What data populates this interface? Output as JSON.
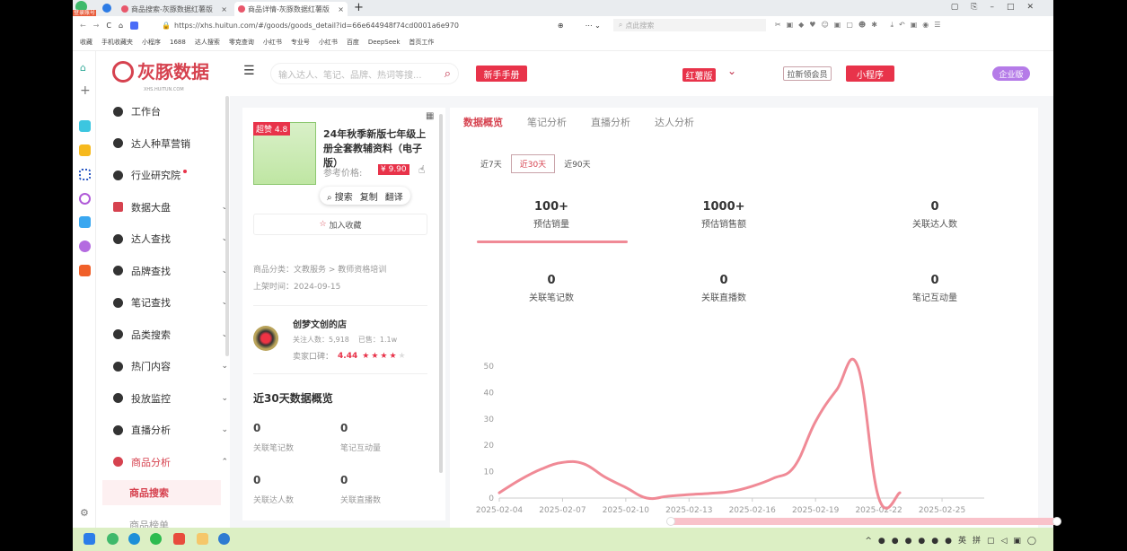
{
  "browser": {
    "tabs": [
      {
        "label": "商品搜索-灰豚数据红薯版"
      },
      {
        "label": "商品详情-灰豚数据红薯版"
      }
    ],
    "profile_badge": "登录账号",
    "url": "https://xhs.huitun.com/#/goods/goods_detail?id=66e644948f74cd0001a6e970",
    "search_placeholder": "点此搜索",
    "bookmarks": [
      "收藏",
      "手机收藏夹",
      "小程序",
      "1688",
      "达人搜索",
      "零克查询",
      "小红书",
      "专业号",
      "小红书",
      "百度",
      "DeepSeek",
      "首页工作"
    ]
  },
  "sidebar": {
    "logo_text": "灰豚数据",
    "logo_sub": "XHS.HUITUN.COM",
    "items": [
      {
        "label": "工作台",
        "icon": "home-icon"
      },
      {
        "label": "达人种草营销",
        "icon": "target-icon"
      },
      {
        "label": "行业研究院",
        "icon": "school-icon",
        "badge": true
      },
      {
        "label": "数据大盘",
        "icon": "bar-chart-icon"
      },
      {
        "label": "达人查找",
        "icon": "search-icon"
      },
      {
        "label": "品牌查找",
        "icon": "brand-icon"
      },
      {
        "label": "笔记查找",
        "icon": "pen-icon"
      },
      {
        "label": "品类搜索",
        "icon": "category-icon"
      },
      {
        "label": "热门内容",
        "icon": "fire-icon"
      },
      {
        "label": "投放监控",
        "icon": "monitor-icon"
      },
      {
        "label": "直播分析",
        "icon": "live-icon"
      },
      {
        "label": "商品分析",
        "icon": "goods-icon"
      }
    ],
    "sub_active": "商品搜索",
    "sub_next": "商品榜单"
  },
  "header": {
    "search_placeholder": "输入达人、笔记、品牌、热词等搜...",
    "guide_btn": "新手手册",
    "version": "红薯版",
    "invite_btn": "拉新领会员",
    "miniapp_btn": "小程序",
    "enterprise_btn": "企业版"
  },
  "product": {
    "badge": "超赞 4.8",
    "title": "24年秋季新版七年级上册全套教辅资料（电子版）",
    "price_label": "参考价格:",
    "price": "¥ 9.90",
    "popup": {
      "search": "搜索",
      "copy": "复制",
      "translate": "翻译"
    },
    "favorite_btn": "加入收藏",
    "category": "商品分类：文教服务 > 教师资格培训",
    "listed": "上架时间：2024-09-15"
  },
  "shop": {
    "name": "创梦文创的店",
    "followers": "关注人数：5,918",
    "sold": "已售：1.1w",
    "rating_label": "卖家口碑：",
    "rating": "4.44",
    "stars": 4
  },
  "overview30": {
    "title": "近30天数据概览",
    "items": [
      {
        "value": "0",
        "label": "关联笔记数"
      },
      {
        "value": "0",
        "label": "笔记互动量"
      },
      {
        "value": "0",
        "label": "关联达人数"
      },
      {
        "value": "0",
        "label": "关联直播数"
      }
    ]
  },
  "analysis": {
    "tabs": [
      "数据概览",
      "笔记分析",
      "直播分析",
      "达人分析"
    ],
    "active_tab": 0,
    "ranges": [
      "近7天",
      "近30天",
      "近90天"
    ],
    "active_range": 1,
    "stats": [
      {
        "value": "100+",
        "label": "预估销量"
      },
      {
        "value": "1000+",
        "label": "预估销售额"
      },
      {
        "value": "0",
        "label": "关联达人数"
      },
      {
        "value": "0",
        "label": "关联笔记数"
      },
      {
        "value": "0",
        "label": "关联直播数"
      },
      {
        "value": "0",
        "label": "笔记互动量"
      }
    ]
  },
  "chart_data": {
    "type": "line",
    "x": [
      "2025-02-04",
      "2025-02-05",
      "2025-02-06",
      "2025-02-07",
      "2025-02-08",
      "2025-02-09",
      "2025-02-10",
      "2025-02-11",
      "2025-02-12",
      "2025-02-13",
      "2025-02-14",
      "2025-02-15",
      "2025-02-16",
      "2025-02-17",
      "2025-02-18",
      "2025-02-19",
      "2025-02-20",
      "2025-02-21",
      "2025-02-22",
      "2025-02-23"
    ],
    "series": [
      {
        "values": [
          2,
          7,
          11,
          13.5,
          13,
          8,
          4,
          0,
          0.7,
          1.3,
          1.8,
          2.5,
          4.5,
          7.5,
          12,
          29,
          41,
          50,
          0,
          2
        ],
        "color": "#f08a96"
      }
    ],
    "xticks": [
      "2025-02-04",
      "2025-02-07",
      "2025-02-10",
      "2025-02-13",
      "2025-02-16",
      "2025-02-19",
      "2025-02-22",
      "2025-02-25"
    ],
    "yticks": [
      0,
      10,
      20,
      30,
      40,
      50
    ],
    "ylim": [
      0,
      50
    ],
    "xlim": [
      "2025-02-04",
      "2025-02-27"
    ],
    "grid": false
  },
  "colors": {
    "accent": "#e8334a",
    "line": "#f08a96",
    "enterprise": "#b57be8"
  }
}
